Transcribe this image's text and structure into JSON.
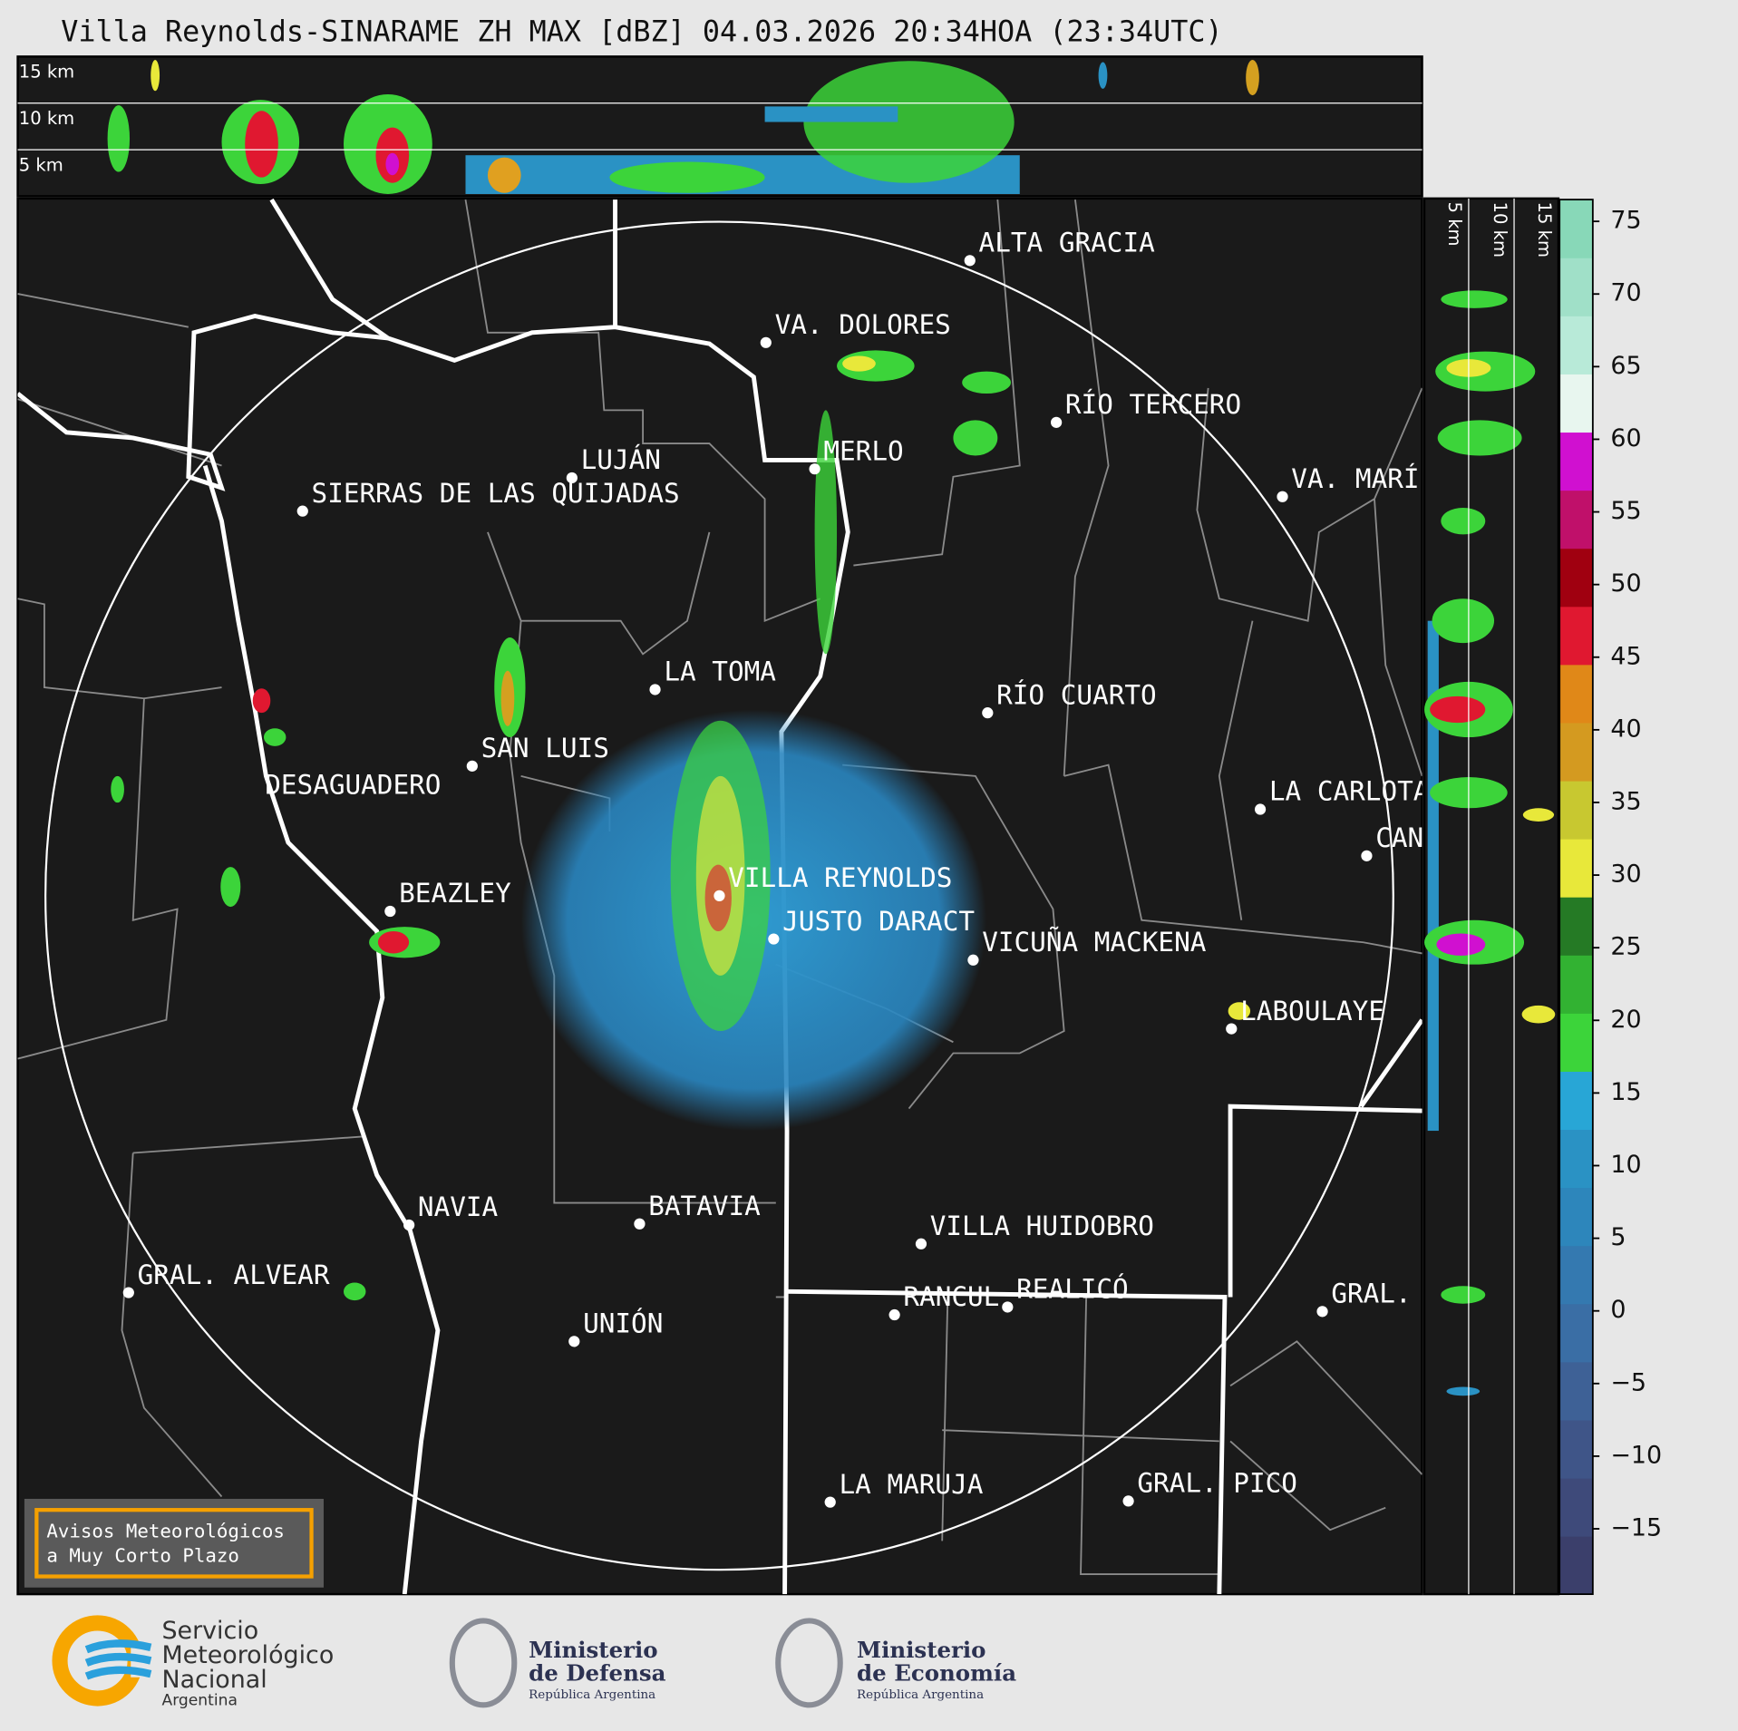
{
  "header": {
    "title": "Villa Reynolds-SINARAME ZH MAX [dBZ] 04.03.2026 20:34HOA (23:34UTC)"
  },
  "top_panel": {
    "height_labels": [
      "15 km",
      "10 km",
      "5 km"
    ]
  },
  "side_panel": {
    "height_labels": [
      "5 km",
      "10 km",
      "15 km"
    ]
  },
  "map": {
    "cities": [
      "ALTA GRACIA",
      "VA. DOLORES",
      "RÍO TERCERO",
      "LUJÁN",
      "MERLO",
      "SIERRAS DE LAS QUIJADAS",
      "VA. MARÍ",
      "LA TOMA",
      "RÍO CUARTO",
      "SAN LUIS",
      "DESAGUADERO",
      "LA CARLOTA",
      "CAN",
      "VILLA REYNOLDS",
      "BEAZLEY",
      "JUSTO DARACT",
      "VICUÑA MACKENA",
      "LABOULAYE",
      "NAVIA",
      "BATAVIA",
      "VILLA HUIDOBRO",
      "GRAL. ALVEAR",
      "RANCUL",
      "REALICÓ",
      "GRAL.",
      "UNIÓN",
      "LA MARUJA",
      "GRAL. PICO"
    ]
  },
  "colorbar": {
    "lim": [
      -19.5,
      76.5
    ],
    "ticks": [
      75,
      70,
      65,
      60,
      55,
      50,
      45,
      40,
      35,
      30,
      25,
      20,
      15,
      10,
      5,
      0,
      {
        "value": -5,
        "label": "−5"
      },
      {
        "value": -10,
        "label": "−10"
      },
      {
        "value": -15,
        "label": "−15"
      }
    ],
    "colors": [
      "#3b3f6b",
      "#3e4a7a",
      "#3f5588",
      "#3e6196",
      "#3a6ea5",
      "#3479b0",
      "#2d86bb",
      "#2a92c4",
      "#28a6d6",
      "#3cd43a",
      "#32b232",
      "#257a25",
      "#e8e83a",
      "#c8c830",
      "#d49a20",
      "#e08818",
      "#e01830",
      "#a00010",
      "#c0106a",
      "#d010d0",
      "#e8f6ef",
      "#b8ead8",
      "#a0e0c8",
      "#88d8b8"
    ]
  },
  "notice": {
    "lines": [
      "Avisos Meteorológicos",
      "a Muy Corto Plazo"
    ]
  },
  "footer": {
    "smn": [
      "Servicio",
      "Meteorológico",
      "Nacional",
      "Argentina"
    ],
    "defensa": [
      "Ministerio",
      "de Defensa",
      "República Argentina"
    ],
    "economia": [
      "Ministerio",
      "de Economía",
      "República Argentina"
    ]
  }
}
